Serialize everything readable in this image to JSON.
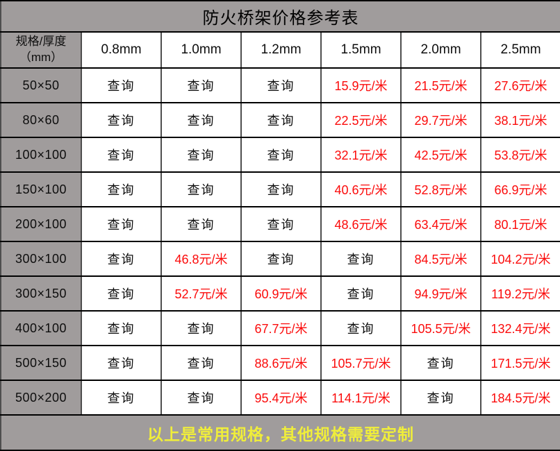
{
  "chart_data": {
    "type": "table",
    "title": "防火桥架价格参考表",
    "header": {
      "spec_column_line1": "规格/厚度",
      "spec_column_line2": "（mm）",
      "thickness_columns": [
        "0.8mm",
        "1.0mm",
        "1.2mm",
        "1.5mm",
        "2.0mm",
        "2.5mm"
      ]
    },
    "inquiry_label": "查询",
    "rows": [
      {
        "spec": "50×50",
        "values": [
          "查询",
          "查询",
          "查询",
          "15.9元/米",
          "21.5元/米",
          "27.6元/米"
        ]
      },
      {
        "spec": "80×60",
        "values": [
          "查询",
          "查询",
          "查询",
          "22.5元/米",
          "29.7元/米",
          "38.1元/米"
        ]
      },
      {
        "spec": "100×100",
        "values": [
          "查询",
          "查询",
          "查询",
          "32.1元/米",
          "42.5元/米",
          "53.8元/米"
        ]
      },
      {
        "spec": "150×100",
        "values": [
          "查询",
          "查询",
          "查询",
          "40.6元/米",
          "52.8元/米",
          "66.9元/米"
        ]
      },
      {
        "spec": "200×100",
        "values": [
          "查询",
          "查询",
          "查询",
          "48.6元/米",
          "63.4元/米",
          "80.1元/米"
        ]
      },
      {
        "spec": "300×100",
        "values": [
          "查询",
          "46.8元/米",
          "查询",
          "查询",
          "84.5元/米",
          "104.2元/米"
        ]
      },
      {
        "spec": "300×150",
        "values": [
          "查询",
          "52.7元/米",
          "60.9元/米",
          "查询",
          "94.9元/米",
          "119.2元/米"
        ]
      },
      {
        "spec": "400×100",
        "values": [
          "查询",
          "查询",
          "67.7元/米",
          "查询",
          "105.5元/米",
          "132.4元/米"
        ]
      },
      {
        "spec": "500×150",
        "values": [
          "查询",
          "查询",
          "88.6元/米",
          "105.7元/米",
          "查询",
          "171.5元/米"
        ]
      },
      {
        "spec": "500×200",
        "values": [
          "查询",
          "查询",
          "95.4元/米",
          "114.1元/米",
          "查询",
          "184.5元/米"
        ]
      }
    ],
    "footer_note": "以上是常用规格，其他规格需要定制"
  },
  "colors": {
    "table_gray": "#a09c9c",
    "price_red": "#fb0b0b",
    "footer_yellow": "#f0ee3a",
    "border_black": "#000000",
    "border_inner": "#4e4e4e",
    "text_black": "#0d0d0d"
  }
}
